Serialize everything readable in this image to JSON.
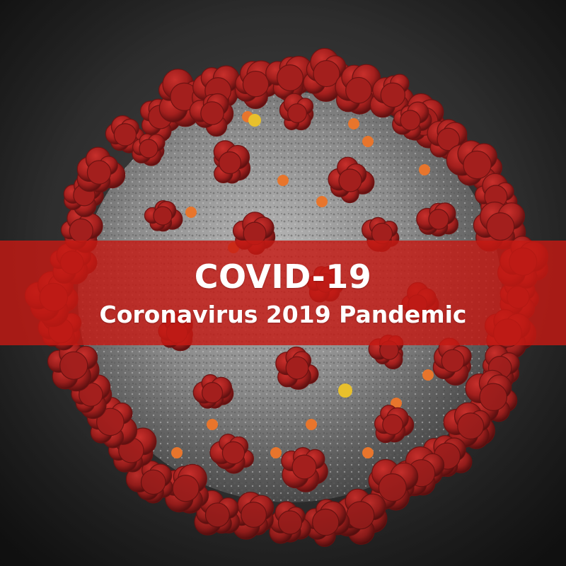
{
  "banner": {
    "title": "COVID-19",
    "subtitle": "Coronavirus 2019 Pandemic"
  },
  "colors": {
    "background": "#2e2e2e",
    "virus_body": "#8c8c8c",
    "spike": "#a31f1d",
    "spike_dark": "#6e1312",
    "protein_orange": "#e8752c",
    "protein_yellow": "#e8c02c",
    "banner": "#c41a14",
    "text": "#ffffff"
  }
}
